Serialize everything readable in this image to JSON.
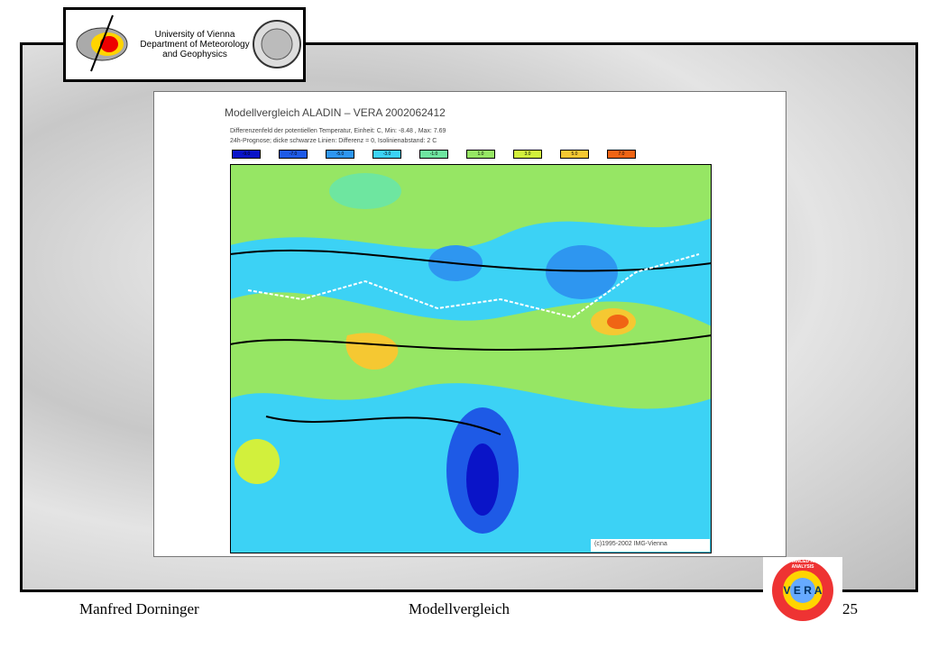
{
  "header": {
    "logo_lines": [
      "University of Vienna",
      "Department of Meteorology",
      "and Geophysics"
    ]
  },
  "figure": {
    "title": "Modellvergleich ALADIN  –  VERA 2002062412",
    "subtitle_lines": [
      "Differenzenfeld der potentiellen Temperatur, Einheit: C, Min:   -8.48 , Max:   7.69",
      "24h-Prognose; dicke schwarze Linien: Differenz = 0, Isolinienabstand: 2 C"
    ],
    "legend": [
      {
        "label": "-9.0",
        "color": "#0a14c8"
      },
      {
        "label": "-7.0",
        "color": "#1e5ae6"
      },
      {
        "label": "-5.0",
        "color": "#2e96f0"
      },
      {
        "label": "-3.0",
        "color": "#3cd2f5"
      },
      {
        "label": "-1.0",
        "color": "#6ee6a0"
      },
      {
        "label": "1.0",
        "color": "#96e664"
      },
      {
        "label": "3.0",
        "color": "#d2f03c"
      },
      {
        "label": "5.0",
        "color": "#f5c832"
      },
      {
        "label": "7.0",
        "color": "#f06414"
      }
    ],
    "copyright": "(c)1995-2002 IMG-Vienna"
  },
  "vera_logo": {
    "ring_text": "VIENNA ENHANCED RESOLUTION ANALYSIS",
    "center_text": "V E R A"
  },
  "footer": {
    "author": "Manfred Dorninger",
    "topic": "Modellvergleich",
    "page": "25"
  }
}
